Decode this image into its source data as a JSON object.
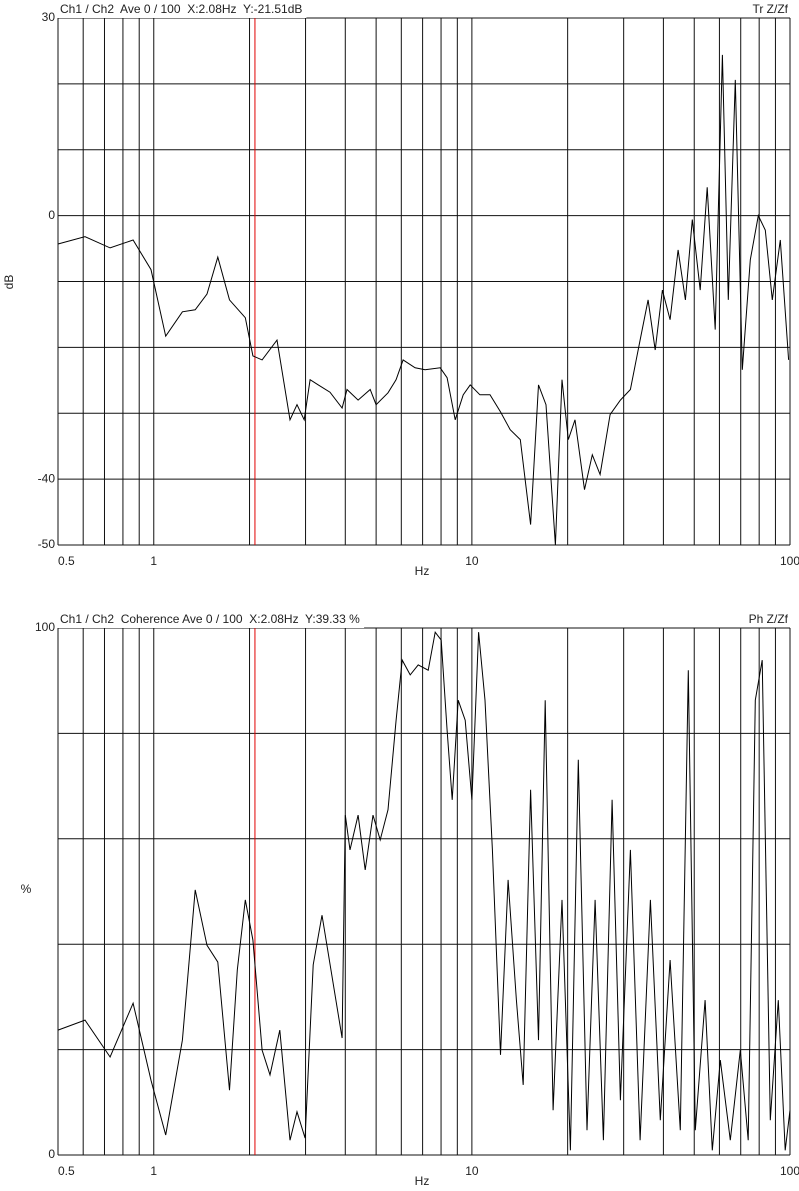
{
  "chart_data": [
    {
      "type": "line",
      "title": "Ch1 / Ch2  Ave 0 / 100  X:2.08Hz  Y:-21.51dB",
      "corner_label": "Tr Z/Zf",
      "xlabel": "Hz",
      "ylabel": "dB",
      "xscale": "log",
      "xlim": [
        0.5,
        100
      ],
      "xticks": [
        0.5,
        1,
        10,
        100
      ],
      "xgrid": [
        0.5,
        0.6,
        0.7,
        0.8,
        0.9,
        1,
        2,
        3,
        4,
        5,
        6,
        7,
        8,
        9,
        10,
        20,
        30,
        40,
        50,
        60,
        70,
        80,
        90,
        100
      ],
      "ylim": [
        -50,
        30
      ],
      "yticks": [
        30,
        0,
        -40,
        -50
      ],
      "ygrid": [
        30,
        20,
        10,
        0,
        -10,
        -20,
        -30,
        -40,
        -50
      ],
      "cursor_x": 2.08,
      "cursor_color": "#e00000",
      "color": "#000000",
      "x": [
        0.5,
        0.608,
        0.729,
        0.861,
        0.98,
        1.09,
        1.23,
        1.35,
        1.47,
        1.59,
        1.73,
        1.94,
        2.05,
        2.19,
        2.44,
        2.68,
        2.82,
        2.97,
        3.1,
        3.29,
        3.58,
        3.91,
        4.05,
        4.39,
        4.79,
        5.0,
        5.45,
        5.78,
        6.08,
        6.63,
        7.13,
        7.95,
        8.36,
        8.86,
        9.39,
        9.88,
        10.6,
        11.4,
        12.3,
        13.2,
        14.2,
        15.3,
        16.2,
        17.1,
        18.3,
        19.2,
        20.1,
        21.1,
        22.6,
        23.9,
        25.3,
        27.2,
        29.3,
        31.5,
        33.8,
        35.8,
        37.7,
        39.7,
        42.0,
        44.5,
        46.9,
        49.3,
        52.2,
        54.9,
        58.2,
        61.3,
        64.0,
        67.3,
        70.8,
        75.0,
        79.5,
        83.6,
        88.0,
        93.2,
        99.0
      ],
      "values": [
        -4.3,
        -3.2,
        -4.9,
        -3.7,
        -8.2,
        -18.3,
        -14.6,
        -14.3,
        -11.9,
        -6.3,
        -12.8,
        -15.5,
        -21.3,
        -21.9,
        -18.9,
        -31,
        -28.7,
        -31,
        -24.9,
        -25.7,
        -26.8,
        -29.2,
        -26.4,
        -28,
        -26.4,
        -28.7,
        -26.9,
        -24.9,
        -21.9,
        -23.1,
        -23.4,
        -23.1,
        -24.6,
        -31,
        -27.2,
        -25.7,
        -27.2,
        -27.2,
        -29.8,
        -32.5,
        -34,
        -46.9,
        -25.7,
        -28.7,
        -50,
        -24.9,
        -34,
        -31,
        -41.6,
        -36.3,
        -39.3,
        -30.2,
        -28,
        -26.4,
        -18.9,
        -12.8,
        -20.4,
        -11.3,
        -15.8,
        -5.2,
        -12.8,
        -0.6,
        -11.3,
        4.3,
        -17.3,
        24.4,
        -12.8,
        20.6,
        -23.4,
        -6.7,
        0,
        -2.2,
        -12.8,
        -3.7,
        -21.9
      ]
    },
    {
      "type": "line",
      "title": "Ch1 / Ch2  Coherence Ave 0 / 100  X:2.08Hz  Y:39.33 %",
      "corner_label": "Ph Z/Zf",
      "xlabel": "Hz",
      "ylabel": "%",
      "xscale": "log",
      "xlim": [
        0.5,
        100
      ],
      "xticks": [
        0.5,
        1,
        10,
        100
      ],
      "xgrid": [
        0.5,
        0.6,
        0.7,
        0.8,
        0.9,
        1,
        2,
        3,
        4,
        5,
        6,
        7,
        8,
        9,
        10,
        20,
        30,
        40,
        50,
        60,
        70,
        80,
        90,
        100
      ],
      "ylim": [
        0,
        100
      ],
      "yticks": [
        100,
        0
      ],
      "ygrid": [
        100,
        80,
        60,
        40,
        20,
        0
      ],
      "cursor_x": 2.08,
      "cursor_color": "#e00000",
      "color": "#000000",
      "x": [
        0.5,
        0.608,
        0.729,
        0.861,
        0.98,
        1.09,
        1.23,
        1.35,
        1.47,
        1.59,
        1.73,
        1.83,
        1.94,
        2.05,
        2.19,
        2.32,
        2.49,
        2.68,
        2.82,
        2.99,
        3.17,
        3.38,
        3.91,
        4.0,
        4.14,
        4.39,
        4.62,
        4.89,
        5.15,
        5.45,
        5.78,
        6.04,
        6.4,
        6.78,
        7.29,
        7.67,
        8.01,
        8.36,
        8.67,
        9.06,
        9.53,
        10.0,
        10.5,
        11.0,
        11.6,
        12.3,
        13.0,
        13.8,
        14.5,
        15.3,
        16.2,
        17.0,
        18.0,
        19.2,
        20.4,
        21.6,
        23.0,
        24.4,
        25.9,
        27.6,
        29.3,
        31.5,
        33.8,
        36.4,
        39.1,
        42.0,
        45.2,
        47.9,
        50.4,
        54.1,
        57.0,
        60.4,
        64.9,
        69.8,
        73.9,
        77.8,
        81.8,
        86.7,
        91.9,
        96.6,
        100
      ],
      "values": [
        23.7,
        25.6,
        18.6,
        28.8,
        14.2,
        3.8,
        21.8,
        50.3,
        39.8,
        36.6,
        12.3,
        35.1,
        48.4,
        40.8,
        19.9,
        15.2,
        23.7,
        2.8,
        8.2,
        3.2,
        36.1,
        45.5,
        22.2,
        64.5,
        57.9,
        64.5,
        54.1,
        64.5,
        59.8,
        65.5,
        82.5,
        93.9,
        91.1,
        93,
        92,
        99.2,
        97.7,
        80.6,
        67.4,
        86.3,
        82.5,
        67.4,
        99.2,
        86.3,
        57.9,
        19,
        52.2,
        29.4,
        13.3,
        69.3,
        21.8,
        86.3,
        8.5,
        48.4,
        0.9,
        75,
        4.7,
        48.4,
        2.8,
        67.4,
        10.4,
        57.9,
        2.8,
        48.4,
        6.6,
        37,
        4.7,
        92,
        4.7,
        29.4,
        0.9,
        18,
        2.8,
        19.9,
        2.8,
        86.3,
        93.9,
        6.6,
        29.4,
        0.9,
        8.5
      ]
    }
  ]
}
